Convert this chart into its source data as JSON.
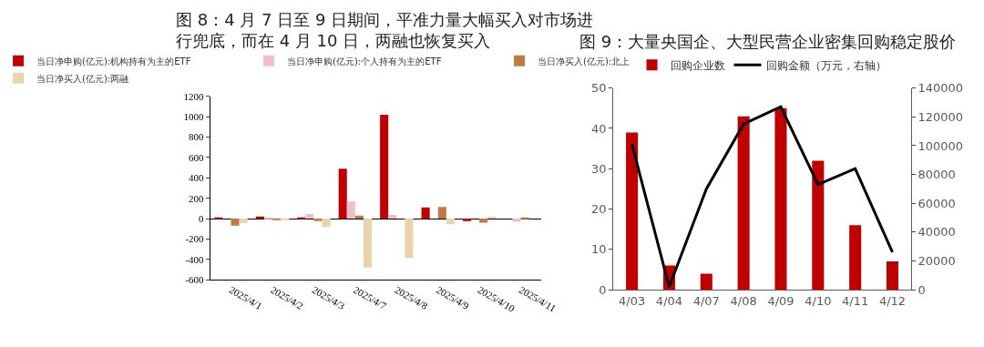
{
  "chart_data": [
    {
      "type": "bar",
      "title": "图 8：4 月 7 日至 9 日期间，平准力量大幅买入对市场进行兜底，而在 4 月 10 日，两融也恢复买入",
      "categories": [
        "2025/4/1",
        "2025/4/2",
        "2025/4/3",
        "2025/4/7",
        "2025/4/8",
        "2025/4/9",
        "2025/4/10",
        "2025/4/11"
      ],
      "series": [
        {
          "name": "当日净申购(亿元):机构持有为主的ETF",
          "color": "#c00000",
          "values": [
            2,
            20,
            12,
            490,
            1020,
            110,
            -25,
            0
          ]
        },
        {
          "name": "当日净申购(亿元):个人持有为主的ETF",
          "color": "#f0c0c8",
          "values": [
            0,
            8,
            45,
            170,
            35,
            0,
            0,
            -30
          ]
        },
        {
          "name": "当日净买入(亿元):北上",
          "color": "#c07a45",
          "values": [
            -70,
            -10,
            -25,
            30,
            0,
            115,
            -40,
            3
          ]
        },
        {
          "name": "当日净买入(亿元):两融",
          "color": "#e8d5b0",
          "values": [
            -45,
            -15,
            -85,
            -480,
            -385,
            -55,
            20,
            null
          ]
        }
      ],
      "ylim": [
        -600,
        1200
      ],
      "yticks": [
        -600,
        -400,
        -200,
        0,
        200,
        400,
        600,
        800,
        1000,
        1200
      ],
      "legend": "top"
    },
    {
      "type": "bar",
      "title": "图 9：大量央国企、大型民营企业密集回购稳定股价",
      "categories": [
        "4/03",
        "4/04",
        "4/07",
        "4/08",
        "4/09",
        "4/10",
        "4/11",
        "4/12"
      ],
      "series": [
        {
          "name": "回购企业数",
          "color": "#c00000",
          "values": [
            39,
            6,
            4,
            43,
            45,
            32,
            16,
            7
          ]
        },
        {
          "name": "回购金额（万元，右轴）",
          "color": "#000000",
          "type": "line",
          "axis": "y2",
          "values": [
            101000,
            2000,
            70000,
            115000,
            127000,
            73000,
            84000,
            26000
          ]
        }
      ],
      "ylim": [
        0,
        50
      ],
      "yticks": [
        0,
        10,
        20,
        30,
        40,
        50
      ],
      "y2lim": [
        0,
        140000
      ],
      "y2ticks": [
        0,
        20000,
        40000,
        60000,
        80000,
        100000,
        120000,
        140000
      ],
      "legend": "top"
    }
  ]
}
